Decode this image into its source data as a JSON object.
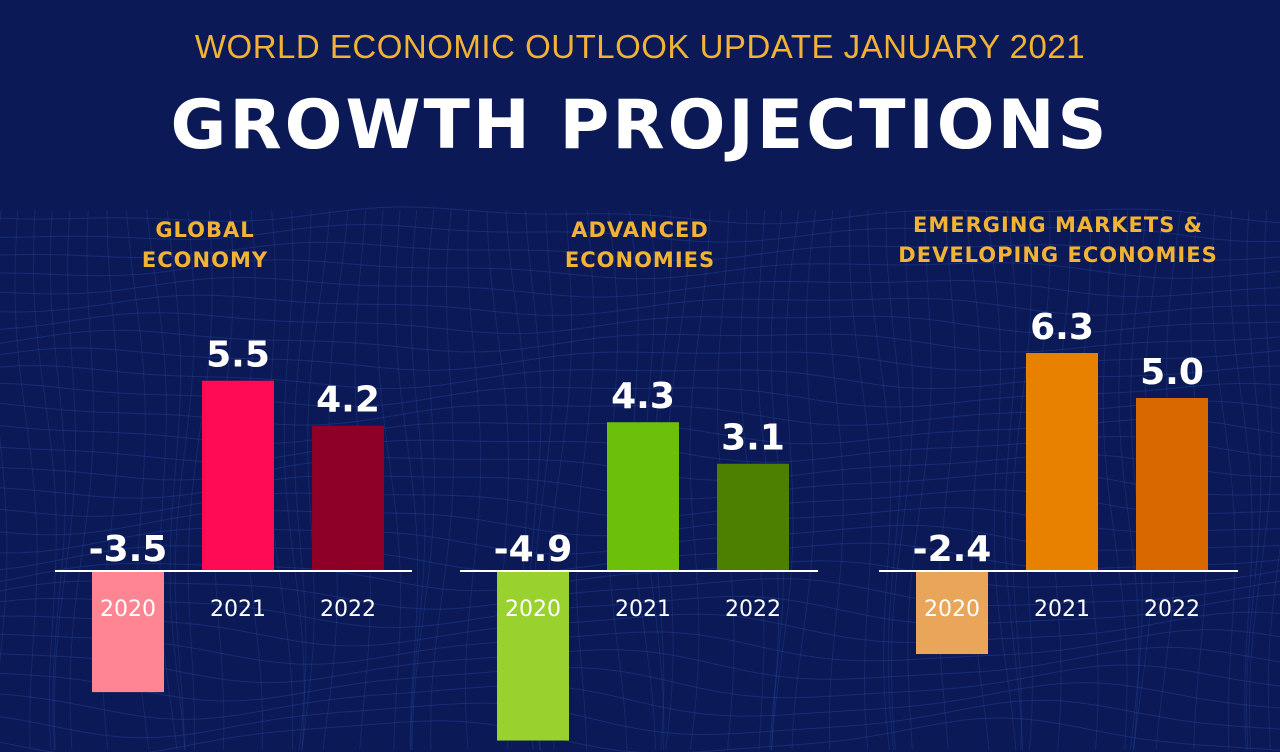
{
  "header": {
    "supertitle": "WORLD ECONOMIC OUTLOOK UPDATE JANUARY 2021",
    "title": "GROWTH PROJECTIONS"
  },
  "colors": {
    "background": "#0b1a56",
    "accent": "#f2b233",
    "text": "#ffffff"
  },
  "chart_data": [
    {
      "type": "bar",
      "title": [
        "GLOBAL",
        "ECONOMY"
      ],
      "categories": [
        "2020",
        "2021",
        "2022"
      ],
      "values": [
        -3.5,
        5.5,
        4.2
      ],
      "value_labels": [
        "-3.5",
        "5.5",
        "4.2"
      ],
      "colors": [
        "#ff8592",
        "#ff0a54",
        "#8e0026"
      ]
    },
    {
      "type": "bar",
      "title": [
        "ADVANCED",
        "ECONOMIES"
      ],
      "categories": [
        "2020",
        "2021",
        "2022"
      ],
      "values": [
        -4.9,
        4.3,
        3.1
      ],
      "value_labels": [
        "-4.9",
        "4.3",
        "3.1"
      ],
      "colors": [
        "#99d12e",
        "#6cc00a",
        "#4d8000"
      ]
    },
    {
      "type": "bar",
      "title": [
        "EMERGING MARKETS &",
        "DEVELOPING ECONOMIES"
      ],
      "categories": [
        "2020",
        "2021",
        "2022"
      ],
      "values": [
        -2.4,
        6.3,
        5.0
      ],
      "value_labels": [
        "-2.4",
        "6.3",
        "5.0"
      ],
      "colors": [
        "#e9a55a",
        "#e88100",
        "#d96800"
      ]
    }
  ]
}
